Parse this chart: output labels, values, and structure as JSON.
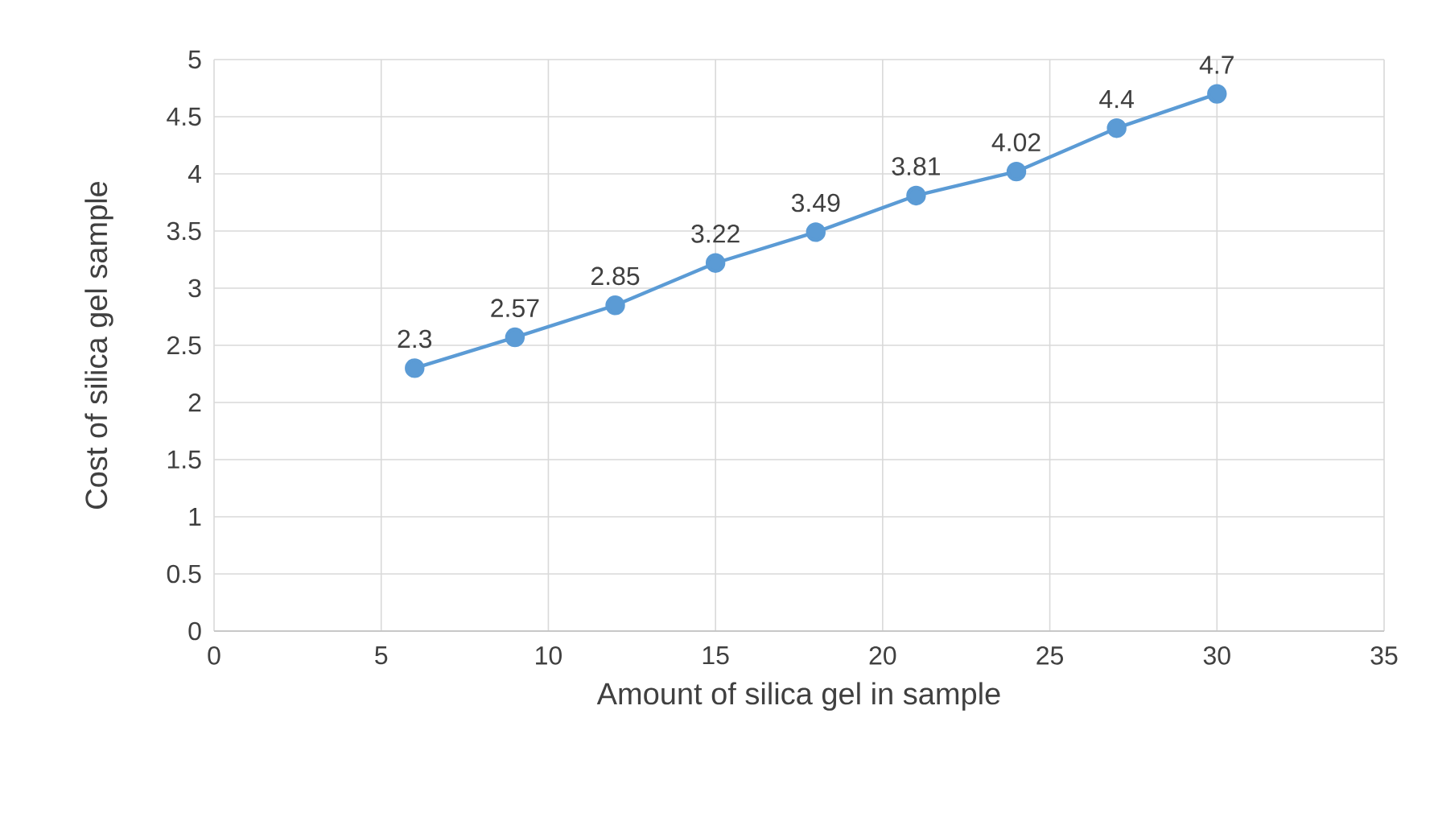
{
  "chart_data": {
    "type": "line",
    "xlabel": "Amount of silica gel in sample",
    "ylabel": "Cost of silica gel sample",
    "x": [
      6,
      9,
      12,
      15,
      18,
      21,
      24,
      27,
      30
    ],
    "series": [
      {
        "color": "#5b9bd5",
        "values": [
          2.3,
          2.57,
          2.85,
          3.22,
          3.49,
          3.81,
          4.02,
          4.4,
          4.7
        ]
      }
    ],
    "xlim": [
      0,
      35
    ],
    "xticks": [
      0,
      5,
      10,
      15,
      20,
      25,
      30,
      35
    ],
    "ylim": [
      0,
      5
    ],
    "yticks": [
      0,
      0.5,
      1,
      1.5,
      2,
      2.5,
      3,
      3.5,
      4,
      4.5,
      5
    ],
    "grid": true,
    "marker": "circle",
    "line_style": "solid",
    "data_labels": true
  }
}
